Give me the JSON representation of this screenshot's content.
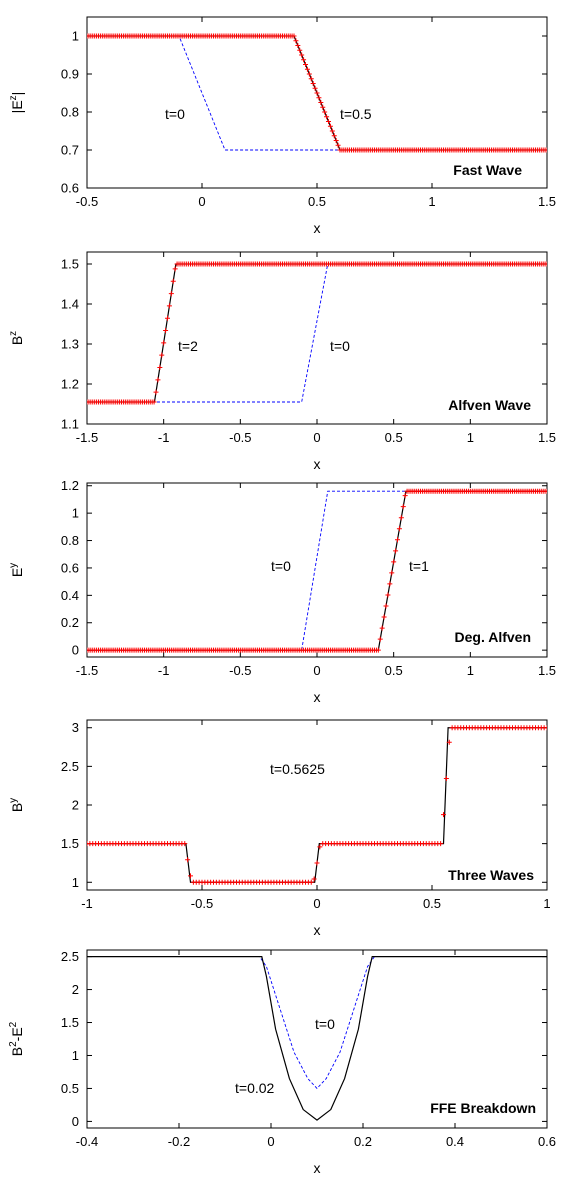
{
  "chart_data": [
    {
      "type": "line",
      "label": "Fast Wave",
      "xlabel": "x",
      "ylabel": "|E^z|",
      "ylabel_base": "|E",
      "ylabel_sup": "z",
      "ylabel_tail": "|",
      "xlim": [
        -0.5,
        1.5
      ],
      "ylim": [
        0.6,
        1.05
      ],
      "xticks": [
        -0.5,
        0,
        0.5,
        1,
        1.5
      ],
      "xtick_labels": [
        "-0.5",
        "0",
        "0.5",
        "1",
        "1.5"
      ],
      "yticks": [
        0.6,
        0.7,
        0.8,
        0.9,
        1
      ],
      "ytick_labels": [
        "0.6",
        "0.7",
        "0.8",
        "0.9",
        "1"
      ],
      "series": [
        {
          "style": "dashed",
          "color": "#0000ff",
          "x": [
            -0.5,
            -0.1,
            0.1,
            1.5
          ],
          "y": [
            1,
            1,
            0.7,
            0.7
          ]
        },
        {
          "style": "solid",
          "color": "#000000",
          "x": [
            -0.5,
            0.4,
            0.6,
            1.5
          ],
          "y": [
            1,
            1,
            0.7,
            0.7
          ]
        },
        {
          "style": "markers",
          "color": "#ff0000",
          "x": [
            -0.5,
            0.4,
            0.6,
            1.5
          ],
          "y": [
            1,
            1,
            0.7,
            0.7
          ],
          "count": 240
        }
      ],
      "annotations": [
        {
          "text": "t=0",
          "x": -0.15,
          "y": 0.89
        },
        {
          "text": "t=0.5",
          "x": 0.68,
          "y": 0.89
        }
      ]
    },
    {
      "type": "line",
      "label": "Alfven Wave",
      "xlabel": "x",
      "ylabel": "B^z",
      "ylabel_base": "B",
      "ylabel_sup": "z",
      "ylabel_tail": "",
      "xlim": [
        -1.5,
        1.5
      ],
      "ylim": [
        1.1,
        1.53
      ],
      "xticks": [
        -1.5,
        -1,
        -0.5,
        0,
        0.5,
        1,
        1.5
      ],
      "xtick_labels": [
        "-1.5",
        "-1",
        "-0.5",
        "0",
        "0.5",
        "1",
        "1.5"
      ],
      "yticks": [
        1.1,
        1.2,
        1.3,
        1.4,
        1.5
      ],
      "ytick_labels": [
        "1.1",
        "1.2",
        "1.3",
        "1.4",
        "1.5"
      ],
      "series": [
        {
          "style": "dashed",
          "color": "#0000ff",
          "x": [
            -1.5,
            -0.1,
            0.07,
            1.5
          ],
          "y": [
            1.155,
            1.155,
            1.5,
            1.5
          ]
        },
        {
          "style": "solid",
          "color": "#000000",
          "x": [
            -1.5,
            -1.06,
            -0.92,
            1.5
          ],
          "y": [
            1.155,
            1.155,
            1.5,
            1.5
          ]
        },
        {
          "style": "markers",
          "color": "#ff0000",
          "x": [
            -1.5,
            -1.06,
            -0.92,
            1.5
          ],
          "y": [
            1.155,
            1.155,
            1.5,
            1.5
          ],
          "count": 240
        }
      ],
      "annotations": [
        {
          "text": "t=2",
          "x": -0.8,
          "y": 1.33
        },
        {
          "text": "t=0",
          "x": 0.16,
          "y": 1.33
        }
      ]
    },
    {
      "type": "line",
      "label": "Deg. Alfven",
      "xlabel": "x",
      "ylabel": "E^y",
      "ylabel_base": "E",
      "ylabel_sup": "y",
      "ylabel_tail": "",
      "xlim": [
        -1.5,
        1.5
      ],
      "ylim": [
        -0.05,
        1.22
      ],
      "xticks": [
        -1.5,
        -1,
        -0.5,
        0,
        0.5,
        1,
        1.5
      ],
      "xtick_labels": [
        "-1.5",
        "-1",
        "-0.5",
        "0",
        "0.5",
        "1",
        "1.5"
      ],
      "yticks": [
        0,
        0.2,
        0.4,
        0.6,
        0.8,
        1,
        1.2
      ],
      "ytick_labels": [
        "0",
        "0.2",
        "0.4",
        "0.6",
        "0.8",
        "1",
        "1.2"
      ],
      "series": [
        {
          "style": "dashed",
          "color": "#0000ff",
          "x": [
            -1.5,
            -0.1,
            0.07,
            1.5
          ],
          "y": [
            0,
            0,
            1.16,
            1.16
          ]
        },
        {
          "style": "solid",
          "color": "#000000",
          "x": [
            -1.5,
            0.4,
            0.58,
            1.5
          ],
          "y": [
            0,
            0,
            1.16,
            1.16
          ]
        },
        {
          "style": "markers",
          "color": "#ff0000",
          "x": [
            -1.5,
            0.4,
            0.58,
            1.5
          ],
          "y": [
            0,
            0,
            1.16,
            1.16
          ],
          "count": 240
        }
      ],
      "annotations": [
        {
          "text": "t=0",
          "x": -0.23,
          "y": 0.6
        },
        {
          "text": "t=1",
          "x": 0.68,
          "y": 0.6
        }
      ]
    },
    {
      "type": "line",
      "label": "Three Waves",
      "xlabel": "x",
      "ylabel": "B^y",
      "ylabel_base": "B",
      "ylabel_sup": "y",
      "ylabel_tail": "",
      "xlim": [
        -1,
        1
      ],
      "ylim": [
        0.9,
        3.1
      ],
      "xticks": [
        -1,
        -0.5,
        0,
        0.5,
        1
      ],
      "xtick_labels": [
        "-1",
        "-0.5",
        "0",
        "0.5",
        "1"
      ],
      "yticks": [
        1,
        1.5,
        2,
        2.5,
        3
      ],
      "ytick_labels": [
        "1",
        "1.5",
        "2",
        "2.5",
        "3"
      ],
      "series": [
        {
          "style": "solid",
          "color": "#000000",
          "x": [
            -1,
            -0.57,
            -0.55,
            -0.01,
            0.01,
            0.55,
            0.57,
            1
          ],
          "y": [
            1.5,
            1.5,
            1,
            1,
            1.5,
            1.5,
            3,
            3
          ]
        },
        {
          "style": "markers",
          "color": "#ff0000",
          "x": [
            -1,
            -0.575,
            -0.545,
            -0.015,
            0.015,
            0.54,
            0.58,
            1
          ],
          "y": [
            1.5,
            1.5,
            1,
            1,
            1.5,
            1.5,
            3,
            3
          ],
          "count": 160
        }
      ],
      "annotations": [
        {
          "text": "t=0.5625",
          "x": -0.07,
          "y": 2.5
        }
      ]
    },
    {
      "type": "line",
      "label": "FFE Breakdown",
      "xlabel": "x",
      "ylabel": "B^2-E^2",
      "ylabel_base": "B",
      "ylabel_sup": "2",
      "ylabel_tail": "-E",
      "ylabel_sup2": "2",
      "xlim": [
        -0.4,
        0.6
      ],
      "ylim": [
        -0.1,
        2.6
      ],
      "xticks": [
        -0.4,
        -0.2,
        0,
        0.2,
        0.4,
        0.6
      ],
      "xtick_labels": [
        "-0.4",
        "-0.2",
        "0",
        "0.2",
        "0.4",
        "0.6"
      ],
      "yticks": [
        0,
        0.5,
        1,
        1.5,
        2,
        2.5
      ],
      "ytick_labels": [
        "0",
        "0.5",
        "1",
        "1.5",
        "2",
        "2.5"
      ],
      "series": [
        {
          "style": "dashed",
          "color": "#0000ff",
          "x": [
            -0.4,
            -0.025,
            -0.01,
            0.02,
            0.05,
            0.08,
            0.1,
            0.12,
            0.15,
            0.18,
            0.21,
            0.225,
            0.6
          ],
          "y": [
            2.5,
            2.5,
            2.35,
            1.7,
            1.05,
            0.65,
            0.5,
            0.65,
            1.05,
            1.7,
            2.35,
            2.5,
            2.5
          ]
        },
        {
          "style": "solid",
          "color": "#000000",
          "x": [
            -0.4,
            -0.02,
            -0.01,
            0.01,
            0.04,
            0.07,
            0.1,
            0.13,
            0.16,
            0.19,
            0.21,
            0.22,
            0.6
          ],
          "y": [
            2.5,
            2.5,
            2.2,
            1.4,
            0.65,
            0.18,
            0.02,
            0.18,
            0.65,
            1.4,
            2.2,
            2.5,
            2.5
          ]
        }
      ],
      "annotations": [
        {
          "text": "t=0",
          "x": 0.135,
          "y": 1.45
        },
        {
          "text": "t=0.02",
          "x": -0.055,
          "y": 0.45
        }
      ]
    }
  ]
}
